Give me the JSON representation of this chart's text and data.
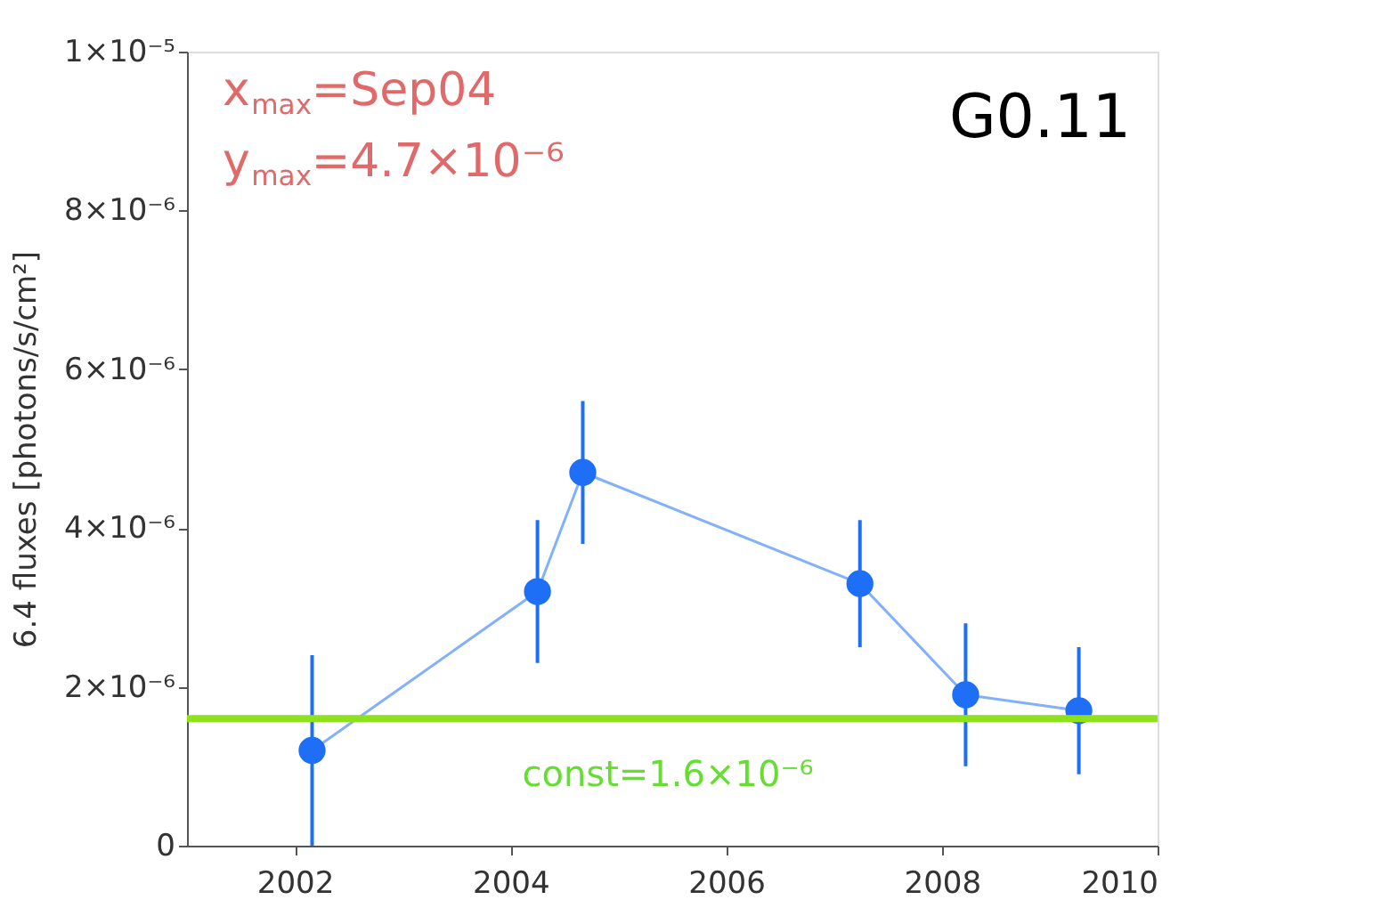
{
  "chart_data": {
    "type": "line",
    "ylabel": "6.4 fluxes [photons/s/cm²]",
    "x": [
      2002.16,
      2004.25,
      2004.67,
      2007.24,
      2008.22,
      2009.27
    ],
    "series": [
      {
        "color": "#1e6ff5",
        "values": [
          1.2e-06,
          3.2e-06,
          4.7e-06,
          3.3e-06,
          1.9e-06,
          1.7e-06
        ],
        "errors": [
          1.2e-06,
          9e-07,
          9e-07,
          8e-07,
          9e-07,
          8e-07
        ]
      }
    ],
    "xlim": [
      2001,
      2010
    ],
    "xticks": [
      2002,
      2004,
      2006,
      2008,
      2010
    ],
    "ylim": [
      0,
      1e-05
    ],
    "yticks": [
      0,
      {
        "value": 2e-06,
        "label": "2×10⁻⁶"
      },
      {
        "value": 4e-06,
        "label": "4×10⁻⁶"
      },
      {
        "value": 6e-06,
        "label": "6×10⁻⁶"
      },
      {
        "value": 8e-06,
        "label": "8×10⁻⁶"
      },
      {
        "value": 1e-05,
        "label": "1×10⁻⁵"
      }
    ],
    "ref_lines": [
      {
        "axis": "y",
        "value": 1.6e-06,
        "label": "const=1.6×10⁻⁶",
        "color": "#8ee21c"
      }
    ],
    "annotations": [
      "x$_{max}$=Sep04",
      "y$_{max}$=4.7×10⁻⁶",
      "G0.11"
    ],
    "marker": "circle",
    "line_style": "solid",
    "grid": false
  }
}
